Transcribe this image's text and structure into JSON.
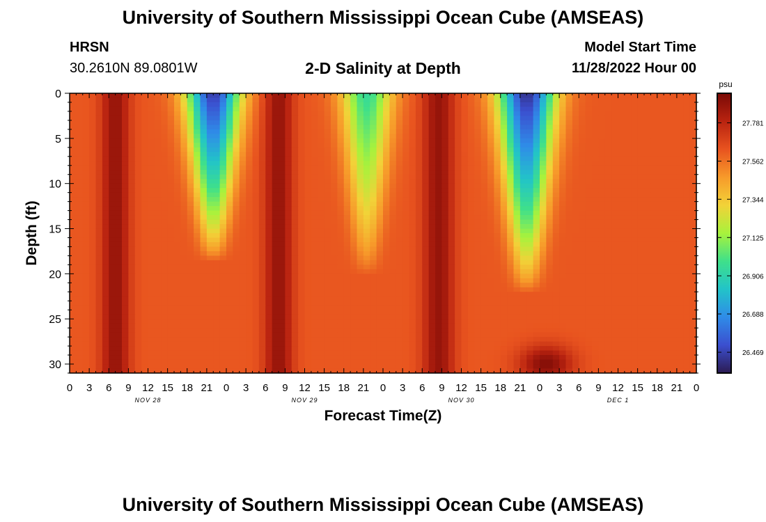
{
  "header": {
    "title": "University of Southern Mississippi Ocean Cube (AMSEAS)",
    "station": "HRSN",
    "coords": "30.2610N  89.0801W",
    "plot_title": "2-D Salinity at Depth",
    "model_start_label": "Model Start Time",
    "model_start_value": "11/28/2022 Hour 00"
  },
  "footer": {
    "title": "University of Southern Mississippi Ocean Cube (AMSEAS)"
  },
  "chart_data": {
    "type": "heatmap",
    "title": "2-D Salinity at Depth",
    "xlabel": "Forecast Time(Z)",
    "ylabel": "Depth (ft)",
    "x_range_hours": [
      0,
      96
    ],
    "x_tick_labels": [
      "0",
      "3",
      "6",
      "9",
      "12",
      "15",
      "18",
      "21",
      "0",
      "3",
      "6",
      "9",
      "12",
      "15",
      "18",
      "21",
      "0",
      "3",
      "6",
      "9",
      "12",
      "15",
      "18",
      "21",
      "0",
      "3",
      "6",
      "9",
      "12",
      "15",
      "18",
      "21",
      "0"
    ],
    "day_labels": [
      {
        "label": "NOV 28",
        "hour": 12
      },
      {
        "label": "NOV 29",
        "hour": 36
      },
      {
        "label": "NOV 30",
        "hour": 60
      },
      {
        "label": "DEC 1",
        "hour": 84
      }
    ],
    "y_range": [
      0,
      31
    ],
    "y_ticks": [
      0,
      5,
      10,
      15,
      20,
      25,
      30
    ],
    "colorbar": {
      "unit": "psu",
      "range": [
        26.35,
        27.95
      ],
      "ticks": [
        27.781,
        27.562,
        27.344,
        27.125,
        26.906,
        26.688,
        26.469
      ],
      "colors": [
        "#2c1b52",
        "#3b4fcf",
        "#2f8ce8",
        "#22c4c8",
        "#3fe08a",
        "#a8f23c",
        "#f2d238",
        "#f79a2a",
        "#e8531f",
        "#b92310",
        "#7a0a06"
      ]
    },
    "fresh_events": [
      {
        "center_hour": 22,
        "width_hours": 3.2,
        "bottom_depth": 18.5,
        "min_value": 26.45
      },
      {
        "center_hour": 45.5,
        "width_hours": 3.0,
        "bottom_depth": 20,
        "min_value": 26.95
      },
      {
        "center_hour": 70,
        "width_hours": 3.4,
        "bottom_depth": 22,
        "min_value": 26.42
      }
    ],
    "salty_peaks": [
      {
        "center_hour": 7,
        "width_hours": 2.2
      },
      {
        "center_hour": 32,
        "width_hours": 2.2
      },
      {
        "center_hour": 56.5,
        "width_hours": 2.4
      },
      {
        "center_hour": 73,
        "depth": 30,
        "width_hours": 4
      }
    ],
    "background_value": 27.62
  }
}
